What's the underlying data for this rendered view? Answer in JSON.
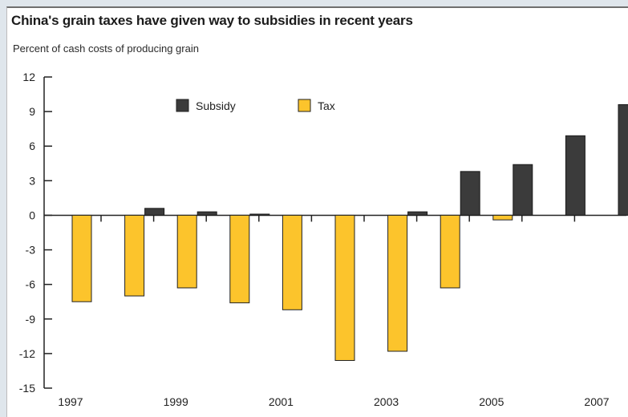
{
  "chart_data": {
    "type": "bar",
    "title": "China's grain taxes have given way to subsidies in recent years",
    "ylabel": "Percent of cash costs of producing grain",
    "xlabel": "",
    "ylim": [
      -15,
      12
    ],
    "yticks": [
      "12",
      "9",
      "6",
      "3",
      "0",
      "-3",
      "-6",
      "-9",
      "-12",
      "-15"
    ],
    "categories": [
      "1997",
      "1998",
      "1999",
      "2000",
      "2001",
      "2002",
      "2003",
      "2004",
      "2005",
      "2006",
      "2007"
    ],
    "xtick_labels": [
      "1997",
      "1999",
      "2001",
      "2003",
      "2005",
      "2007"
    ],
    "series": [
      {
        "name": "Subsidy",
        "color": "#3b3b3b",
        "values": [
          null,
          0.6,
          0.3,
          0.1,
          null,
          null,
          0.3,
          3.8,
          4.4,
          6.9,
          9.6
        ]
      },
      {
        "name": "Tax",
        "color": "#fcc42c",
        "values": [
          -7.5,
          -7.0,
          -6.3,
          -7.6,
          -8.2,
          -12.6,
          -11.8,
          -6.3,
          -0.4,
          null,
          null
        ]
      }
    ],
    "legend": {
      "position": "top-center",
      "entries": [
        "Subsidy",
        "Tax"
      ]
    },
    "grid": false
  }
}
